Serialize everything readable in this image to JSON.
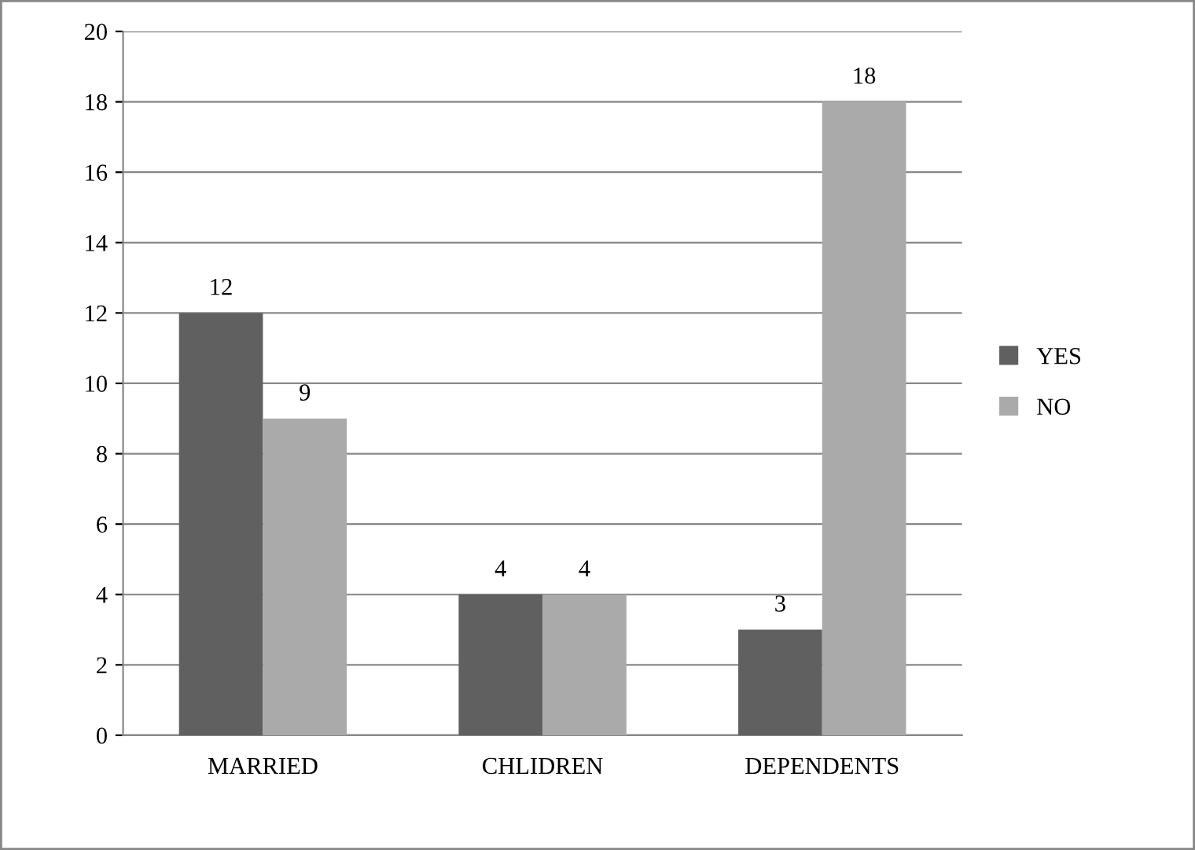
{
  "chart_data": {
    "type": "bar",
    "categories": [
      "MARRIED",
      "CHLIDREN",
      "DEPENDENTS"
    ],
    "series": [
      {
        "name": "YES",
        "color": "#606060",
        "values": [
          12,
          4,
          3
        ]
      },
      {
        "name": "NO",
        "color": "#aaaaaa",
        "values": [
          9,
          4,
          18
        ]
      }
    ],
    "ylim": [
      0,
      20
    ],
    "yticks": [
      0,
      2,
      4,
      6,
      8,
      10,
      12,
      14,
      16,
      18,
      20
    ],
    "grid": "y",
    "legend": "right",
    "data_labels": true
  }
}
